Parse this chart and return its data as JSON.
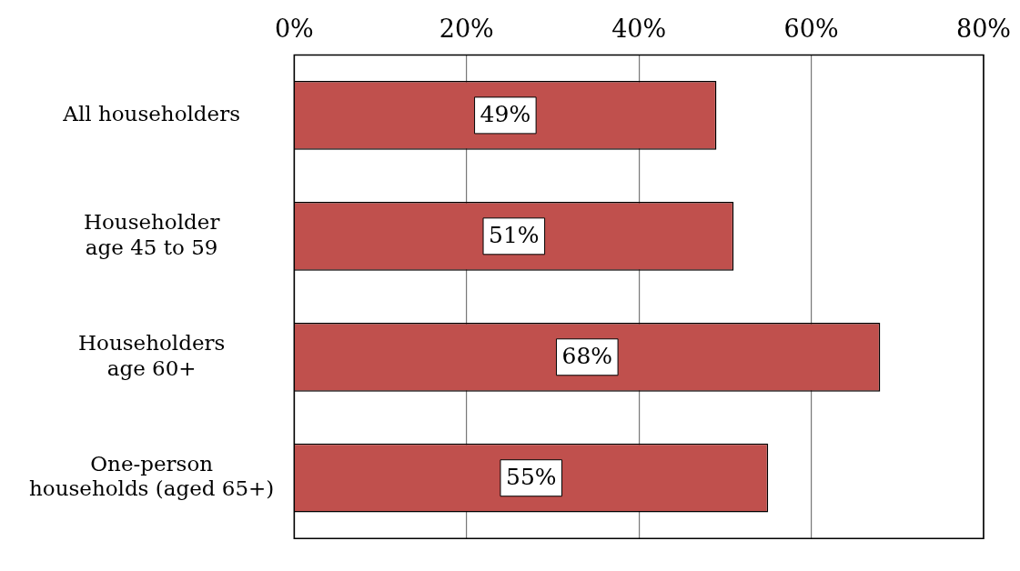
{
  "chart_data": {
    "type": "bar",
    "orientation": "horizontal",
    "categories": [
      "All householders",
      "Householder\nage 45 to 59",
      "Householders\nage 60+",
      "One-person\nhouseholds (aged 65+)"
    ],
    "values": [
      49,
      51,
      68,
      55
    ],
    "value_labels": [
      "49%",
      "51%",
      "68%",
      "55%"
    ],
    "color": "#c0504d",
    "xlim": [
      0,
      80
    ],
    "xticks": [
      {
        "value": 0,
        "label": "0%"
      },
      {
        "value": 20,
        "label": "20%"
      },
      {
        "value": 40,
        "label": "40%"
      },
      {
        "value": 60,
        "label": "60%"
      },
      {
        "value": 80,
        "label": "80%"
      }
    ],
    "grid": "x",
    "legend": false
  }
}
